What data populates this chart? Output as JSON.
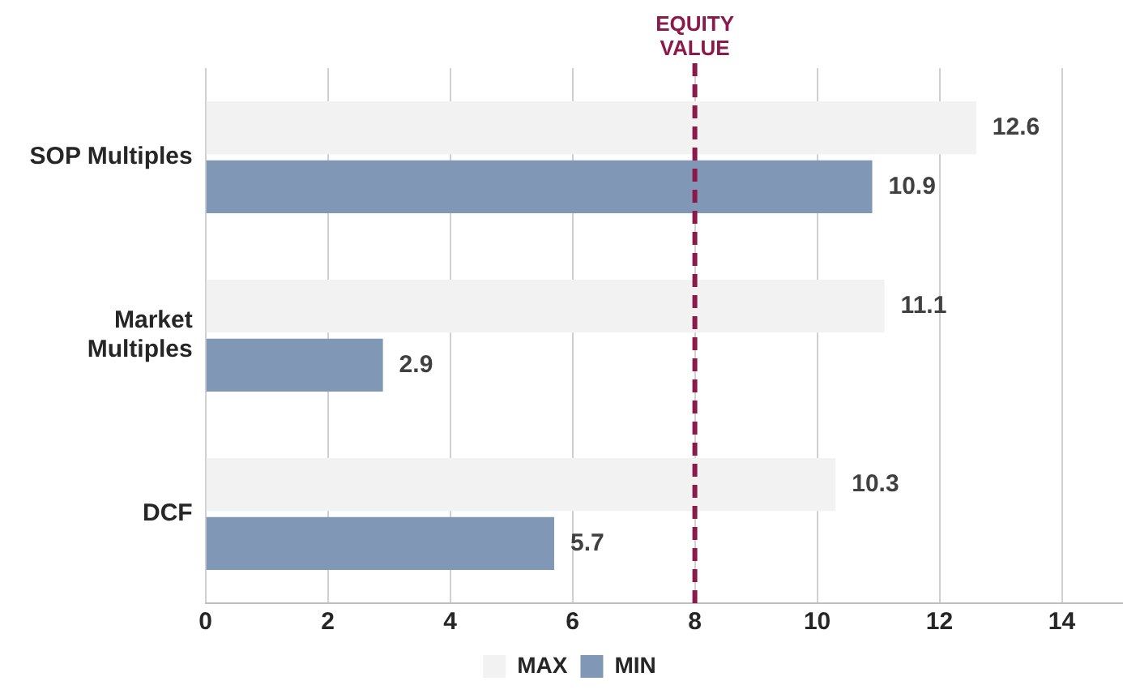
{
  "chart_data": {
    "type": "bar",
    "orientation": "horizontal",
    "categories": [
      "SOP Multiples",
      "Market Multiples",
      "DCF"
    ],
    "series": [
      {
        "name": "MAX",
        "color": "#f2f2f2",
        "values": [
          12.6,
          11.1,
          10.3
        ]
      },
      {
        "name": "MIN",
        "color": "#8097b6",
        "values": [
          10.9,
          2.9,
          5.7
        ]
      }
    ],
    "xlim": [
      0,
      15
    ],
    "xticks": [
      0,
      2,
      4,
      6,
      8,
      10,
      12,
      14
    ],
    "grid": "x",
    "legend": "bottom",
    "data_labels": true,
    "ref_lines": [
      {
        "axis": "x",
        "value": 8,
        "label": "EQUITY VALUE",
        "color": "#8b1a4a",
        "line_style": "dashed"
      }
    ]
  }
}
